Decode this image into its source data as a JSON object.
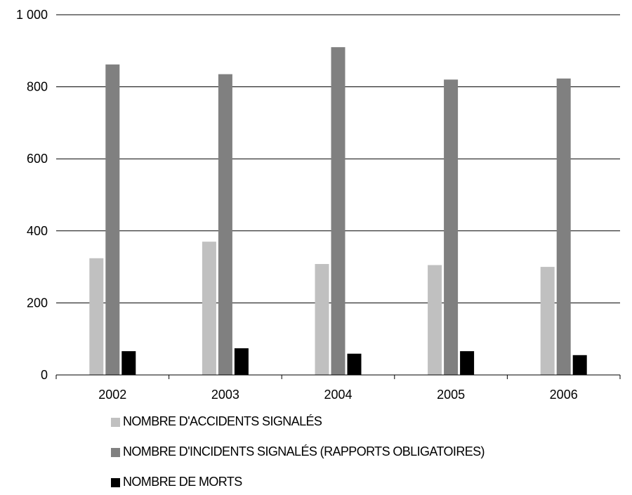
{
  "chart_data": {
    "type": "bar",
    "title": "",
    "xlabel": "",
    "ylabel": "",
    "categories": [
      "2002",
      "2003",
      "2004",
      "2005",
      "2006"
    ],
    "ylim": [
      0,
      1000
    ],
    "yticks": [
      0,
      200,
      400,
      600,
      800,
      1000
    ],
    "ytick_labels": [
      "0",
      "200",
      "400",
      "600",
      "800",
      "1 000"
    ],
    "grid": true,
    "legend_position": "bottom",
    "series": [
      {
        "name": "NOMBRE D'ACCIDENTS SIGNALÉS",
        "color": "#c0c0c0",
        "values": [
          324,
          370,
          308,
          305,
          300
        ]
      },
      {
        "name": "NOMBRE D'INCIDENTS SIGNALÉS (RAPPORTS OBLIGATOIRES)",
        "color": "#808080",
        "values": [
          862,
          835,
          910,
          820,
          823
        ]
      },
      {
        "name": "NOMBRE DE MORTS",
        "color": "#000000",
        "values": [
          66,
          74,
          59,
          66,
          55
        ]
      }
    ]
  }
}
